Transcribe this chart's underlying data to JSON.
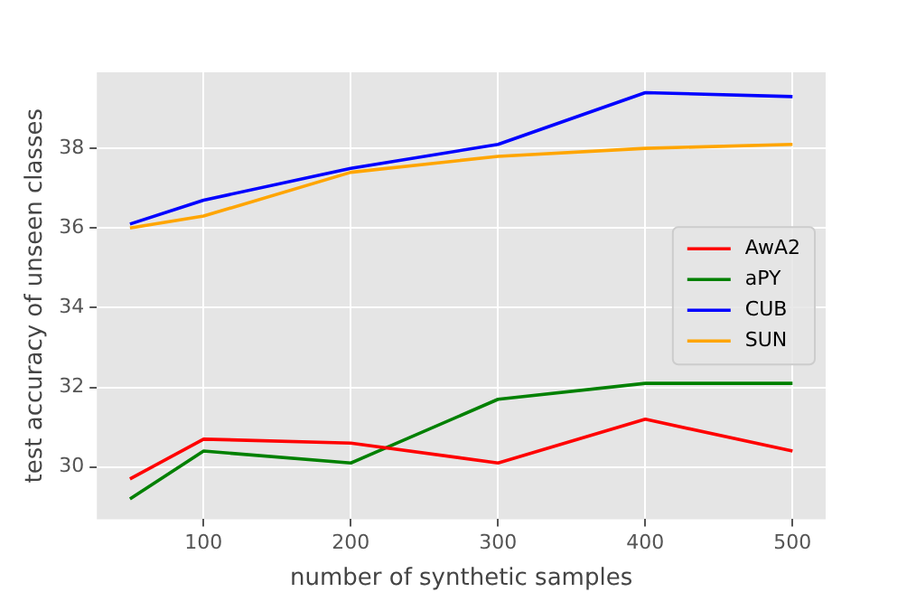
{
  "chart_data": {
    "type": "line",
    "xlabel": "number of synthetic samples",
    "ylabel": "test accuracy of unseen classes",
    "x": [
      50,
      100,
      200,
      300,
      400,
      500
    ],
    "series": [
      {
        "name": "AwA2",
        "color": "#ff0000",
        "values": [
          29.7,
          30.7,
          30.6,
          30.1,
          31.2,
          30.4
        ]
      },
      {
        "name": "aPY",
        "color": "#008000",
        "values": [
          29.2,
          30.4,
          30.1,
          31.7,
          32.1,
          32.1
        ]
      },
      {
        "name": "CUB",
        "color": "#0000ff",
        "values": [
          36.1,
          36.7,
          37.5,
          38.1,
          39.4,
          39.3
        ]
      },
      {
        "name": "SUN",
        "color": "#ffa500",
        "values": [
          36.0,
          36.3,
          37.4,
          37.8,
          38.0,
          38.1
        ]
      }
    ],
    "xlim": [
      27.5,
      522.5
    ],
    "xticks": [
      100,
      200,
      300,
      400,
      500
    ],
    "ylim": [
      28.69,
      39.91
    ],
    "yticks": [
      30,
      32,
      34,
      36,
      38
    ],
    "grid": true,
    "legend": "right",
    "marker": "none",
    "line_style": "solid"
  }
}
